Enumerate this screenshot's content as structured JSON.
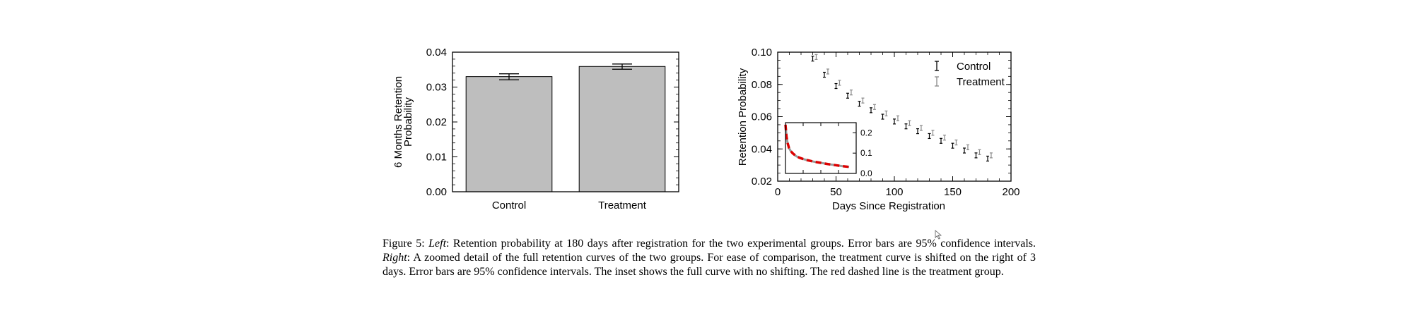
{
  "chart_data": [
    {
      "type": "bar",
      "ylabel_lines": [
        "6 Months Retention",
        "Probability"
      ],
      "categories": [
        "Control",
        "Treatment"
      ],
      "values": [
        0.033,
        0.0359
      ],
      "error_bars": [
        [
          0.0321,
          0.0338
        ],
        [
          0.0351,
          0.0366
        ]
      ],
      "ylim": [
        0,
        0.04
      ],
      "yticks": [
        "0.00",
        "0.01",
        "0.02",
        "0.03",
        "0.04"
      ],
      "bar_color": "#bebebe"
    },
    {
      "type": "scatter",
      "xlabel": "Days Since Registration",
      "ylabel": "Retention Probability",
      "xlim": [
        0,
        200
      ],
      "ylim": [
        0.02,
        0.1
      ],
      "xticks": [
        "0",
        "50",
        "100",
        "150",
        "200"
      ],
      "yticks": [
        "0.02",
        "0.04",
        "0.06",
        "0.08",
        "0.10"
      ],
      "legend_position": "top-right",
      "series": [
        {
          "name": "Control",
          "color": "#000000",
          "x": [
            30,
            40,
            50,
            60,
            70,
            80,
            90,
            100,
            110,
            120,
            130,
            140,
            150,
            160,
            170,
            180
          ],
          "y": [
            0.096,
            0.086,
            0.079,
            0.073,
            0.068,
            0.064,
            0.06,
            0.057,
            0.054,
            0.051,
            0.048,
            0.045,
            0.042,
            0.039,
            0.036,
            0.034
          ]
        },
        {
          "name": "Treatment",
          "color": "#888888",
          "x": [
            33,
            43,
            53,
            63,
            73,
            83,
            93,
            103,
            113,
            123,
            133,
            143,
            153,
            163,
            173,
            183
          ],
          "y": [
            0.097,
            0.088,
            0.081,
            0.075,
            0.07,
            0.066,
            0.062,
            0.059,
            0.056,
            0.053,
            0.05,
            0.047,
            0.044,
            0.041,
            0.038,
            0.036
          ]
        }
      ],
      "inset": {
        "type": "line",
        "yticks": [
          "0.0",
          "0.1",
          "0.2"
        ],
        "ylim": [
          0,
          0.25
        ],
        "xlim": [
          0,
          200
        ],
        "curve_x": [
          0,
          3,
          6,
          10,
          15,
          20,
          30,
          40,
          50,
          60,
          80,
          100,
          120,
          140,
          160,
          180
        ],
        "curve_y": [
          0.24,
          0.18,
          0.15,
          0.125,
          0.11,
          0.1,
          0.085,
          0.077,
          0.071,
          0.066,
          0.058,
          0.052,
          0.046,
          0.041,
          0.036,
          0.032
        ],
        "control_color": "#999999",
        "treatment_color": "#dd0000"
      }
    }
  ],
  "caption": {
    "prefix": "Figure 5: ",
    "left_word": "Left",
    "left_text": ": Retention probability at 180 days after registration for the two experimental groups. Error bars are 95% confidence intervals. ",
    "right_word": "Right",
    "right_text": ": A zoomed detail of the full retention curves of the two groups. For ease of comparison, the treatment curve is shifted on the right of 3 days. Error bars are 95% confidence intervals. The inset shows the full curve with no shifting. The red dashed line is the treatment group."
  }
}
